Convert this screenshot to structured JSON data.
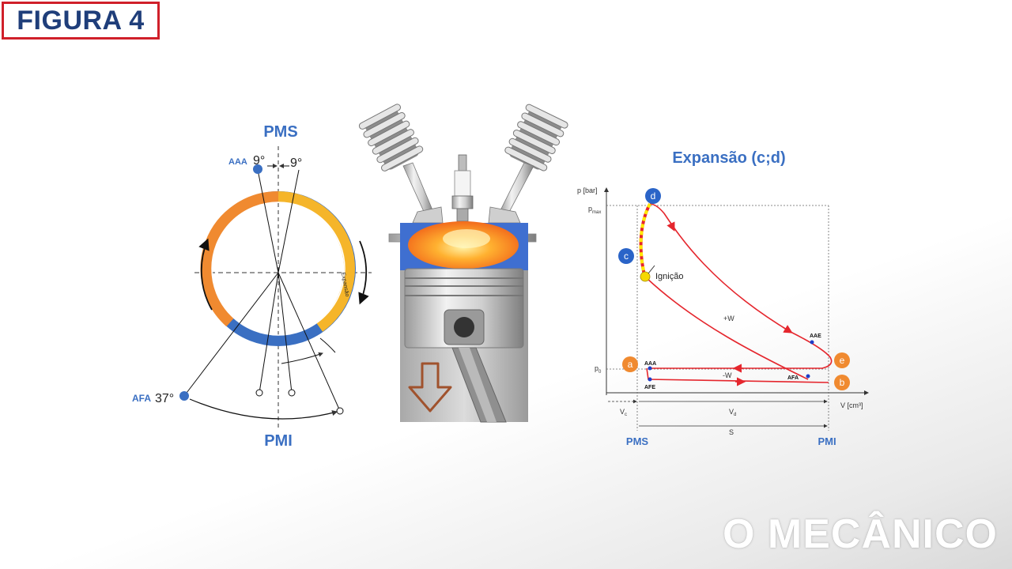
{
  "title": "FIGURA 4",
  "brand": "O MECÂNICO",
  "timing": {
    "top_label": "PMS",
    "bottom_label": "PMI",
    "aaa_label": "AAA",
    "aaa_angle": "9°",
    "aaa_angle_right": "9°",
    "afa_label": "AFA",
    "afa_angle": "37°",
    "arc_label": "Expansão"
  },
  "pv": {
    "title": "Expansão (c;d)",
    "y_axis": "p [bar]",
    "x_axis": "V [cm³]",
    "pmax": "p",
    "pmax_sub": "max",
    "p0": "p",
    "p0_sub": "0",
    "points": [
      "a",
      "b",
      "c",
      "d",
      "e"
    ],
    "ignition": "Ignição",
    "plus_w": "+W",
    "minus_w": "-W",
    "aae": "AAE",
    "afa": "AFA",
    "aaa": "AAA",
    "afe": "AFE",
    "vc": "V",
    "vc_sub": "c",
    "vd": "V",
    "vd_sub": "d",
    "s": "S",
    "pms": "PMS",
    "pmi": "PMI"
  },
  "colors": {
    "blue": "#3a6fc2",
    "orange": "#f08a30",
    "yellow": "#f5b52a",
    "red": "#e5262d",
    "title_red": "#d0202a",
    "navy": "#1f3e7a"
  }
}
